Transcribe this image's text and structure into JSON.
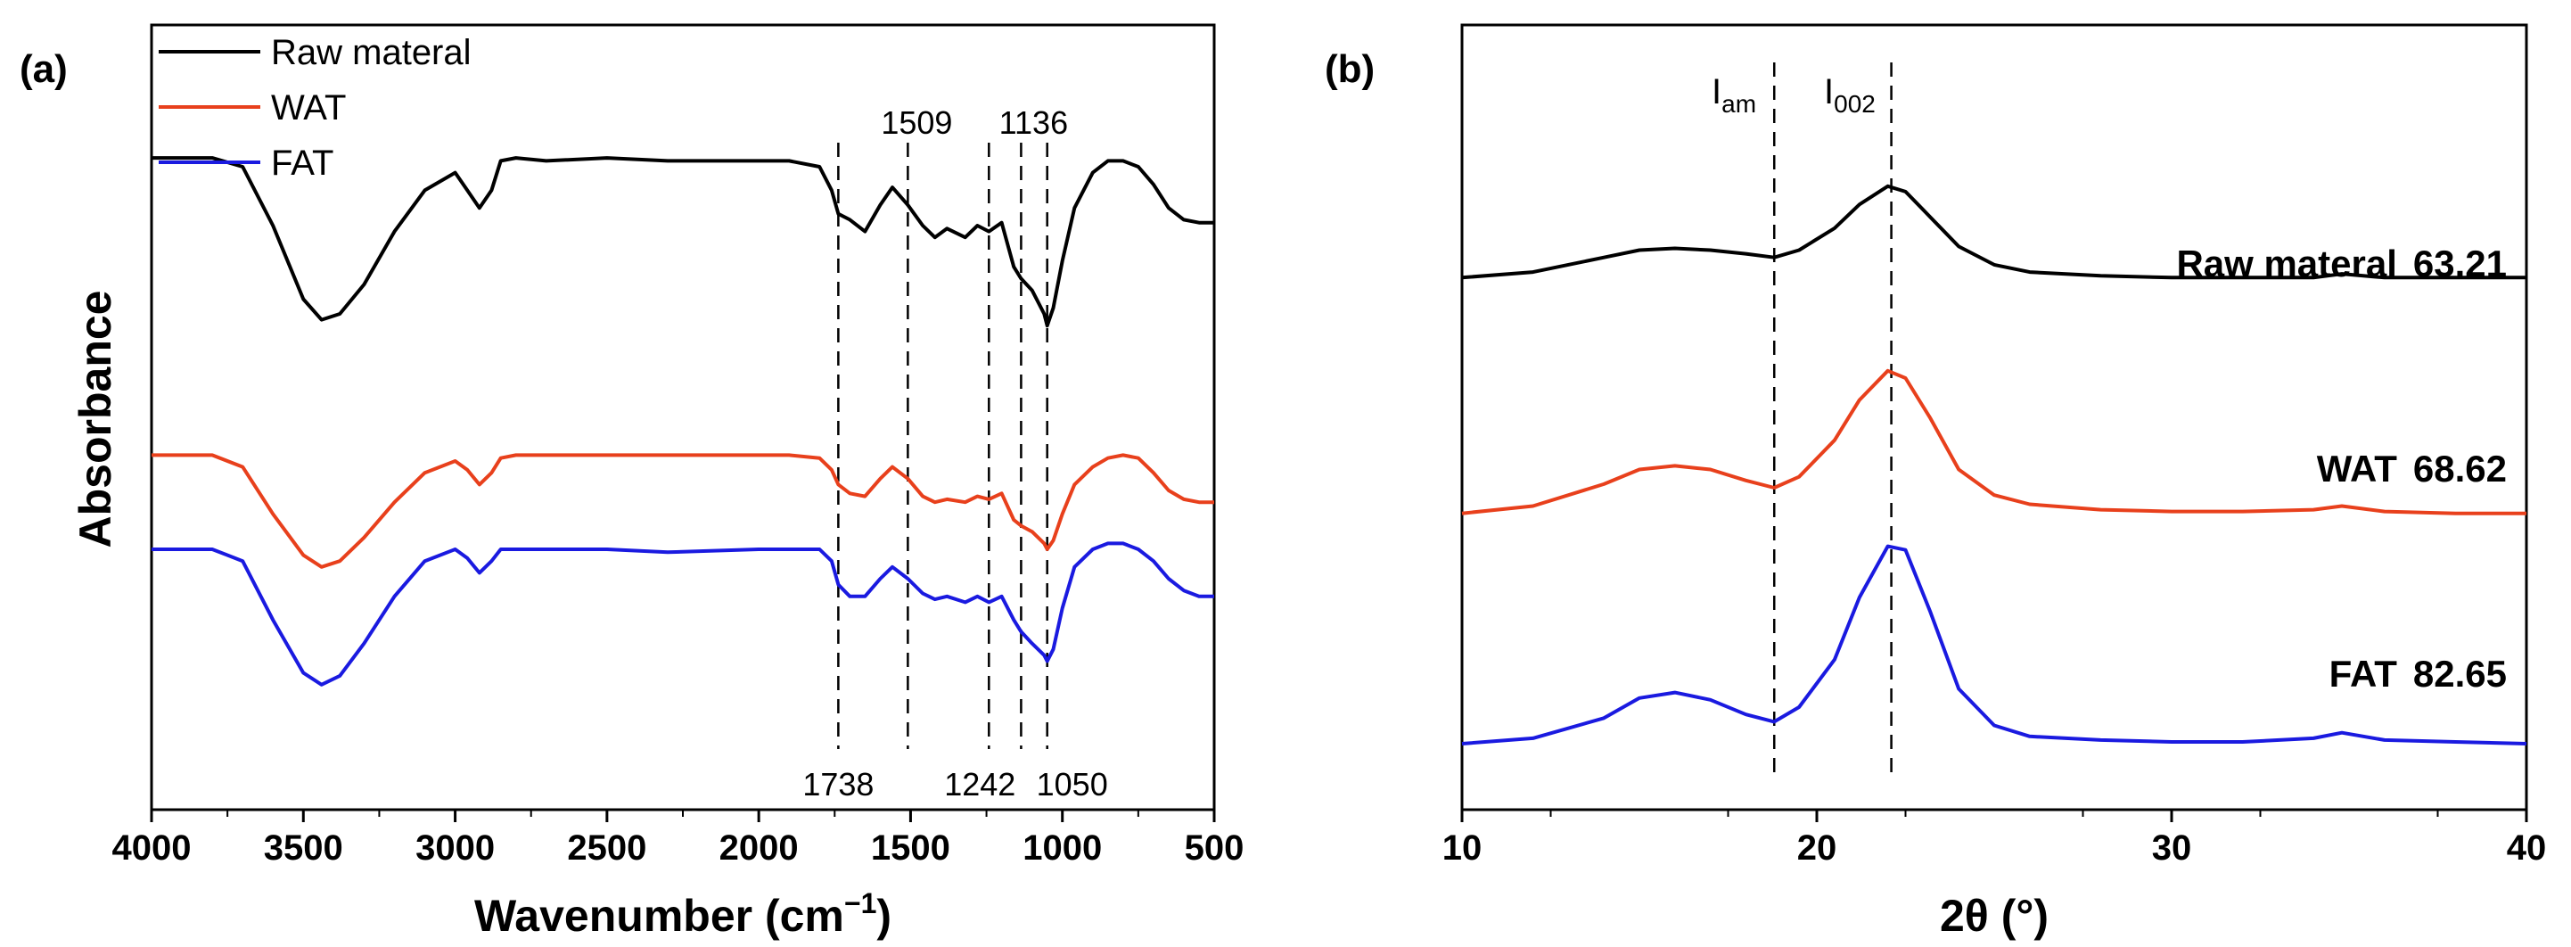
{
  "chart_data": [
    {
      "panel_label": "(a)",
      "type": "line",
      "title": "",
      "xlabel": "Wavenumber (cm",
      "xlabel_sup": "−1",
      "xlabel_close": ")",
      "ylabel": "Absorbance",
      "xlim": [
        4000,
        500
      ],
      "x_reversed": true,
      "xticks": [
        4000,
        3500,
        3000,
        2500,
        2000,
        1500,
        1000,
        500
      ],
      "y_units": "arbitrary (stacked spectra, offset)",
      "legend_position": "top-left",
      "series": [
        {
          "name": "Raw materal",
          "color": "#000000",
          "offset": 2.2,
          "x": [
            4000,
            3800,
            3700,
            3600,
            3500,
            3440,
            3380,
            3300,
            3200,
            3100,
            3000,
            2960,
            2920,
            2880,
            2850,
            2800,
            2700,
            2500,
            2300,
            2000,
            1900,
            1800,
            1760,
            1738,
            1700,
            1650,
            1600,
            1560,
            1509,
            1460,
            1420,
            1380,
            1320,
            1280,
            1242,
            1200,
            1160,
            1136,
            1100,
            1060,
            1050,
            1030,
            1000,
            960,
            900,
            850,
            800,
            750,
            700,
            650,
            600,
            550,
            500
          ],
          "y": [
            2.13,
            2.13,
            2.1,
            1.9,
            1.65,
            1.58,
            1.6,
            1.7,
            1.88,
            2.02,
            2.08,
            2.02,
            1.96,
            2.02,
            2.12,
            2.13,
            2.12,
            2.13,
            2.12,
            2.12,
            2.12,
            2.1,
            2.02,
            1.94,
            1.92,
            1.88,
            1.97,
            2.03,
            1.97,
            1.9,
            1.86,
            1.89,
            1.86,
            1.9,
            1.88,
            1.91,
            1.76,
            1.72,
            1.68,
            1.6,
            1.56,
            1.62,
            1.78,
            1.96,
            2.08,
            2.12,
            2.12,
            2.1,
            2.04,
            1.96,
            1.92,
            1.91,
            1.91
          ]
        },
        {
          "name": "WAT",
          "color": "#e8401c",
          "offset": 1.1,
          "x": [
            4000,
            3800,
            3700,
            3600,
            3500,
            3440,
            3380,
            3300,
            3200,
            3100,
            3000,
            2960,
            2920,
            2880,
            2850,
            2800,
            2700,
            2500,
            2300,
            2000,
            1900,
            1800,
            1760,
            1738,
            1700,
            1650,
            1600,
            1560,
            1509,
            1460,
            1420,
            1380,
            1320,
            1280,
            1242,
            1200,
            1160,
            1136,
            1100,
            1060,
            1050,
            1030,
            1000,
            960,
            900,
            850,
            800,
            750,
            700,
            650,
            600,
            550,
            500
          ],
          "y": [
            1.12,
            1.12,
            1.08,
            0.92,
            0.78,
            0.74,
            0.76,
            0.84,
            0.96,
            1.06,
            1.1,
            1.07,
            1.02,
            1.06,
            1.11,
            1.12,
            1.12,
            1.12,
            1.12,
            1.12,
            1.12,
            1.11,
            1.07,
            1.02,
            0.99,
            0.98,
            1.04,
            1.08,
            1.04,
            0.98,
            0.96,
            0.97,
            0.96,
            0.98,
            0.97,
            0.99,
            0.9,
            0.88,
            0.86,
            0.82,
            0.8,
            0.83,
            0.92,
            1.02,
            1.08,
            1.11,
            1.12,
            1.11,
            1.06,
            1.0,
            0.97,
            0.96,
            0.96
          ]
        },
        {
          "name": "FAT",
          "color": "#1a1ae0",
          "offset": 0.0,
          "x": [
            4000,
            3800,
            3700,
            3600,
            3500,
            3440,
            3380,
            3300,
            3200,
            3100,
            3000,
            2960,
            2920,
            2880,
            2850,
            2800,
            2700,
            2500,
            2300,
            2000,
            1900,
            1800,
            1760,
            1738,
            1700,
            1650,
            1600,
            1560,
            1509,
            1460,
            1420,
            1380,
            1320,
            1280,
            1242,
            1200,
            1160,
            1136,
            1100,
            1060,
            1050,
            1030,
            1000,
            960,
            900,
            850,
            800,
            750,
            700,
            650,
            600,
            550,
            500
          ],
          "y": [
            0.8,
            0.8,
            0.76,
            0.56,
            0.38,
            0.34,
            0.37,
            0.48,
            0.64,
            0.76,
            0.8,
            0.77,
            0.72,
            0.76,
            0.8,
            0.8,
            0.8,
            0.8,
            0.79,
            0.8,
            0.8,
            0.8,
            0.76,
            0.68,
            0.64,
            0.64,
            0.7,
            0.74,
            0.7,
            0.65,
            0.63,
            0.64,
            0.62,
            0.64,
            0.62,
            0.64,
            0.56,
            0.52,
            0.48,
            0.44,
            0.42,
            0.46,
            0.6,
            0.74,
            0.8,
            0.82,
            0.82,
            0.8,
            0.76,
            0.7,
            0.66,
            0.64,
            0.64
          ]
        }
      ],
      "annotations": [
        {
          "text": "1509",
          "x": 1509,
          "position": "top"
        },
        {
          "text": "1136",
          "x": 1136,
          "position": "top"
        },
        {
          "text": "1738",
          "x": 1738,
          "position": "bottom"
        },
        {
          "text": "1242",
          "x": 1242,
          "position": "bottom"
        },
        {
          "text": "1050",
          "x": 1050,
          "position": "bottom"
        }
      ],
      "dashed_lines_x": [
        1738,
        1509,
        1242,
        1136,
        1050
      ]
    },
    {
      "panel_label": "(b)",
      "type": "line",
      "title": "",
      "xlabel": "2θ (°)",
      "ylabel": "",
      "xlim": [
        10,
        40
      ],
      "xticks": [
        10,
        20,
        30,
        40
      ],
      "y_units": "arbitrary (stacked patterns, offset)",
      "series": [
        {
          "name": "Raw materal",
          "value_label": "63.21",
          "color": "#000000",
          "x": [
            10,
            12,
            14,
            15,
            16,
            17,
            18,
            18.8,
            19.5,
            20.5,
            21.2,
            22,
            22.5,
            23.2,
            24,
            25,
            26,
            28,
            30,
            32,
            34,
            34.8,
            36,
            38,
            40
          ],
          "y": [
            2.55,
            2.58,
            2.66,
            2.7,
            2.71,
            2.7,
            2.68,
            2.66,
            2.7,
            2.82,
            2.95,
            3.05,
            3.02,
            2.88,
            2.72,
            2.62,
            2.58,
            2.56,
            2.55,
            2.55,
            2.55,
            2.57,
            2.55,
            2.55,
            2.55
          ]
        },
        {
          "name": "WAT",
          "value_label": "68.62",
          "color": "#e8401c",
          "x": [
            10,
            12,
            14,
            15,
            16,
            17,
            18,
            18.8,
            19.5,
            20.5,
            21.2,
            22,
            22.5,
            23.2,
            24,
            25,
            26,
            28,
            30,
            32,
            34,
            34.8,
            36,
            38,
            40
          ],
          "y": [
            1.26,
            1.3,
            1.42,
            1.5,
            1.52,
            1.5,
            1.44,
            1.4,
            1.46,
            1.66,
            1.88,
            2.04,
            2.0,
            1.78,
            1.5,
            1.36,
            1.31,
            1.28,
            1.27,
            1.27,
            1.28,
            1.3,
            1.27,
            1.26,
            1.26
          ]
        },
        {
          "name": "FAT",
          "value_label": "82.65",
          "color": "#1a1ae0",
          "x": [
            10,
            12,
            14,
            15,
            16,
            17,
            18,
            18.8,
            19.5,
            20.5,
            21.2,
            22,
            22.5,
            23.2,
            24,
            25,
            26,
            28,
            30,
            32,
            34,
            34.8,
            36,
            38,
            40
          ],
          "y": [
            0.0,
            0.03,
            0.14,
            0.25,
            0.28,
            0.24,
            0.16,
            0.12,
            0.2,
            0.46,
            0.8,
            1.08,
            1.06,
            0.72,
            0.3,
            0.1,
            0.04,
            0.02,
            0.01,
            0.01,
            0.03,
            0.06,
            0.02,
            0.01,
            0.0
          ]
        }
      ],
      "annotations": [
        {
          "text": "I",
          "sub": "am",
          "x": 18.8
        },
        {
          "text": "I",
          "sub": "002",
          "x": 22.1
        }
      ],
      "dashed_lines_x": [
        18.8,
        22.1
      ]
    }
  ]
}
